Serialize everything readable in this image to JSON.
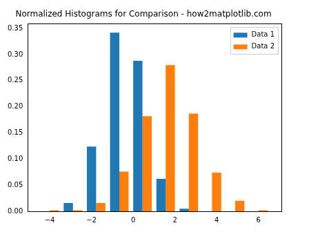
{
  "chart_data": {
    "type": "histogram",
    "title": "Normalized Histograms for Comparison - how2matplotlib.com",
    "bins": [
      -4.56,
      -3.44,
      -2.33,
      -1.22,
      -0.11,
      1.0,
      2.11,
      3.22,
      4.33,
      5.44,
      6.56
    ],
    "series": [
      {
        "name": "Data 1",
        "color": "#1f77b4",
        "values": [
          0,
          0.016,
          0.124,
          0.342,
          0.288,
          0.062,
          0.005,
          0,
          0,
          0
        ]
      },
      {
        "name": "Data 2",
        "color": "#ff7f0e",
        "values": [
          0.002,
          0.002,
          0.016,
          0.076,
          0.182,
          0.28,
          0.187,
          0.074,
          0.02,
          0.002
        ]
      }
    ],
    "xlim": [
      -5.05,
      7.1
    ],
    "xticks": [
      {
        "value": -4,
        "label": "−4"
      },
      {
        "value": -2,
        "label": "−2"
      },
      0,
      2,
      4,
      6
    ],
    "ylim": [
      0,
      0.359
    ],
    "yticks": [
      {
        "value": 0,
        "label": "0.00"
      },
      {
        "value": 0.05,
        "label": "0.05"
      },
      {
        "value": 0.1,
        "label": "0.10"
      },
      {
        "value": 0.15,
        "label": "0.15"
      },
      {
        "value": 0.2,
        "label": "0.20"
      },
      {
        "value": 0.25,
        "label": "0.25"
      },
      {
        "value": 0.3,
        "label": "0.30"
      },
      {
        "value": 0.35,
        "label": "0.35"
      }
    ],
    "grid": false,
    "legend": "upper right"
  }
}
